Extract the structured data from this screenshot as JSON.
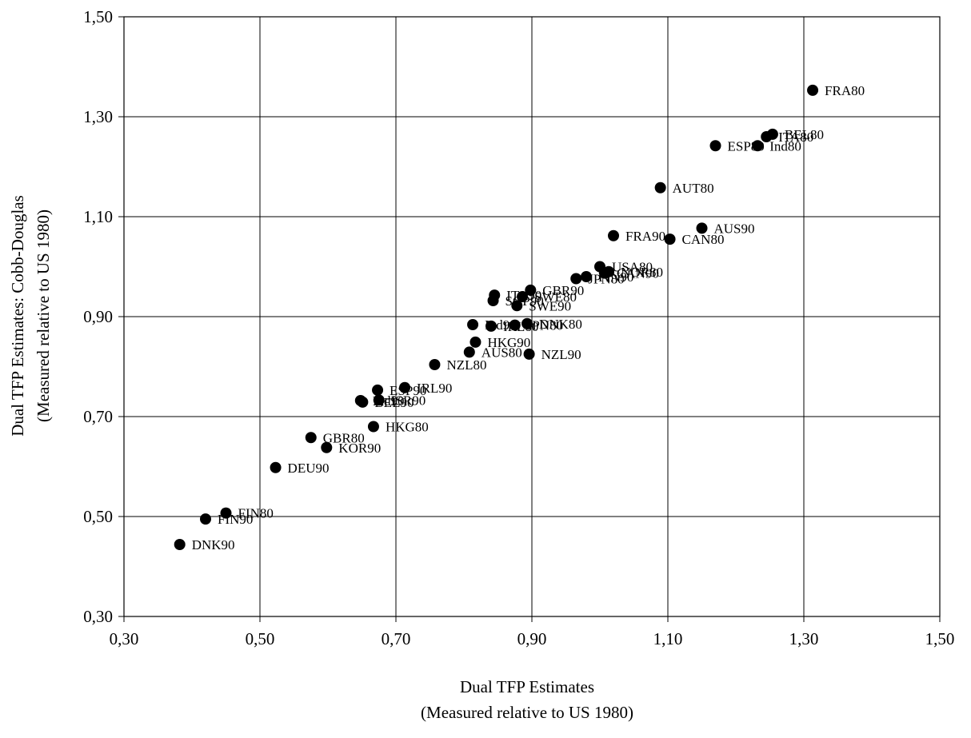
{
  "chart_data": {
    "type": "scatter",
    "xlabel": [
      "Dual TFP Estimates",
      "(Measured relative to US 1980)"
    ],
    "ylabel": [
      "Dual TFP Estimates: Cobb-Douglas",
      "(Measured relative to US 1980)"
    ],
    "xlim": [
      0.3,
      1.5
    ],
    "ylim": [
      0.3,
      1.5
    ],
    "xticks": [
      0.3,
      0.5,
      0.7,
      0.9,
      1.1,
      1.3,
      1.5
    ],
    "yticks": [
      0.3,
      0.5,
      0.7,
      0.9,
      1.1,
      1.3,
      1.5
    ],
    "xtick_labels": [
      "0,30",
      "0,50",
      "0,70",
      "0,90",
      "1,10",
      "1,30",
      "1,50"
    ],
    "ytick_labels": [
      "0,30",
      "0,50",
      "0,70",
      "0,90",
      "1,10",
      "1,30",
      "1,50"
    ],
    "grid": true,
    "marker_color": "#000000",
    "points": [
      {
        "label": "FRA80",
        "x": 1.313,
        "y": 1.353
      },
      {
        "label": "BEL80",
        "x": 1.254,
        "y": 1.265
      },
      {
        "label": "ITA80",
        "x": 1.245,
        "y": 1.26
      },
      {
        "label": "ESP80",
        "x": 1.17,
        "y": 1.242
      },
      {
        "label": "Ind80",
        "x": 1.232,
        "y": 1.242
      },
      {
        "label": "AUT80",
        "x": 1.089,
        "y": 1.158
      },
      {
        "label": "AUS90",
        "x": 1.15,
        "y": 1.077
      },
      {
        "label": "FRA90",
        "x": 1.02,
        "y": 1.062
      },
      {
        "label": "CAN80",
        "x": 1.103,
        "y": 1.055
      },
      {
        "label": "USA80",
        "x": 1.0,
        "y": 1.0
      },
      {
        "label": "NOR80",
        "x": 1.013,
        "y": 0.99
      },
      {
        "label": "CAN90",
        "x": 1.007,
        "y": 0.987
      },
      {
        "label": "FIN90",
        "x": 0.98,
        "y": 0.98
      },
      {
        "label": "JPN80",
        "x": 0.965,
        "y": 0.976
      },
      {
        "label": "GBR90",
        "x": 0.898,
        "y": 0.953
      },
      {
        "label": "ITA90",
        "x": 0.845,
        "y": 0.943
      },
      {
        "label": "SWE80",
        "x": 0.886,
        "y": 0.94
      },
      {
        "label": "SGP90",
        "x": 0.843,
        "y": 0.932
      },
      {
        "label": "SWE90",
        "x": 0.878,
        "y": 0.922
      },
      {
        "label": "Ind90",
        "x": 0.813,
        "y": 0.884
      },
      {
        "label": "IRL80",
        "x": 0.84,
        "y": 0.881
      },
      {
        "label": "DNK80",
        "x": 0.893,
        "y": 0.886
      },
      {
        "label": "JPN80",
        "x": 0.875,
        "y": 0.883
      },
      {
        "label": "HKG90",
        "x": 0.817,
        "y": 0.849
      },
      {
        "label": "AUS80",
        "x": 0.808,
        "y": 0.829
      },
      {
        "label": "NZL90",
        "x": 0.896,
        "y": 0.825
      },
      {
        "label": "NZL80",
        "x": 0.757,
        "y": 0.804
      },
      {
        "label": "IRL90",
        "x": 0.713,
        "y": 0.758
      },
      {
        "label": "ESP90",
        "x": 0.673,
        "y": 0.753
      },
      {
        "label": "ISR90",
        "x": 0.675,
        "y": 0.733
      },
      {
        "label": "Ind90",
        "x": 0.648,
        "y": 0.732
      },
      {
        "label": "BEL90",
        "x": 0.651,
        "y": 0.729
      },
      {
        "label": "HKG80",
        "x": 0.667,
        "y": 0.68
      },
      {
        "label": "GBR80",
        "x": 0.575,
        "y": 0.658
      },
      {
        "label": "KOR90",
        "x": 0.598,
        "y": 0.638
      },
      {
        "label": "DEU90",
        "x": 0.523,
        "y": 0.598
      },
      {
        "label": "FIN80",
        "x": 0.45,
        "y": 0.507
      },
      {
        "label": "FIN90",
        "x": 0.42,
        "y": 0.495
      },
      {
        "label": "DNK90",
        "x": 0.382,
        "y": 0.444
      }
    ]
  }
}
